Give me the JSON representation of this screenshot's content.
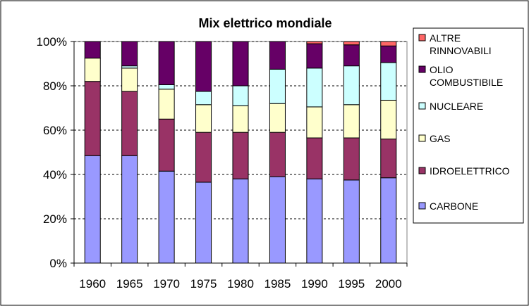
{
  "chart_data": {
    "type": "bar",
    "stacked": true,
    "percent": true,
    "title": "Mix elettrico mondiale",
    "categories": [
      "1960",
      "1965",
      "1970",
      "1975",
      "1980",
      "1985",
      "1990",
      "1995",
      "2000"
    ],
    "ylim": [
      0,
      100
    ],
    "y_ticks": [
      "0%",
      "20%",
      "40%",
      "60%",
      "80%",
      "100%"
    ],
    "grid": true,
    "legend_position": "right",
    "series": [
      {
        "name": "CARBONE",
        "color": "#9999ff",
        "values": [
          48.5,
          48.5,
          41.5,
          36.5,
          38,
          39,
          38,
          37.5,
          38.5
        ]
      },
      {
        "name": "IDROELETTRICO",
        "color": "#993366",
        "values": [
          33.5,
          29,
          23.5,
          22.5,
          21,
          20,
          18.5,
          19,
          17.5
        ]
      },
      {
        "name": "GAS",
        "color": "#ffffcc",
        "values": [
          10.5,
          10.5,
          13.5,
          12.5,
          12,
          13,
          14,
          15,
          17.5
        ]
      },
      {
        "name": "NUCLEARE",
        "color": "#ccffff",
        "values": [
          0,
          1,
          2,
          6,
          9,
          15.5,
          17.5,
          17.5,
          17
        ]
      },
      {
        "name": "OLIO COMBUSTIBILE",
        "color": "#660066",
        "values": [
          7.5,
          11,
          19.5,
          22.5,
          20,
          12.5,
          11,
          9.5,
          7.5
        ]
      },
      {
        "name": "ALTRE RINNOVABILI",
        "color": "#ff6666",
        "values": [
          0,
          0,
          0,
          0,
          0,
          0,
          1,
          1.5,
          2
        ]
      }
    ]
  },
  "legend": {
    "items": [
      {
        "lines": [
          "ALTRE",
          "RINNOVABILI"
        ],
        "color": "#ff6666"
      },
      {
        "lines": [
          "OLIO",
          "COMBUSTIBILE"
        ],
        "color": "#660066"
      },
      {
        "lines": [
          "NUCLEARE"
        ],
        "color": "#ccffff"
      },
      {
        "lines": [
          "GAS"
        ],
        "color": "#ffffcc"
      },
      {
        "lines": [
          "IDROELETTRICO"
        ],
        "color": "#993366"
      },
      {
        "lines": [
          "CARBONE"
        ],
        "color": "#9999ff"
      }
    ]
  }
}
